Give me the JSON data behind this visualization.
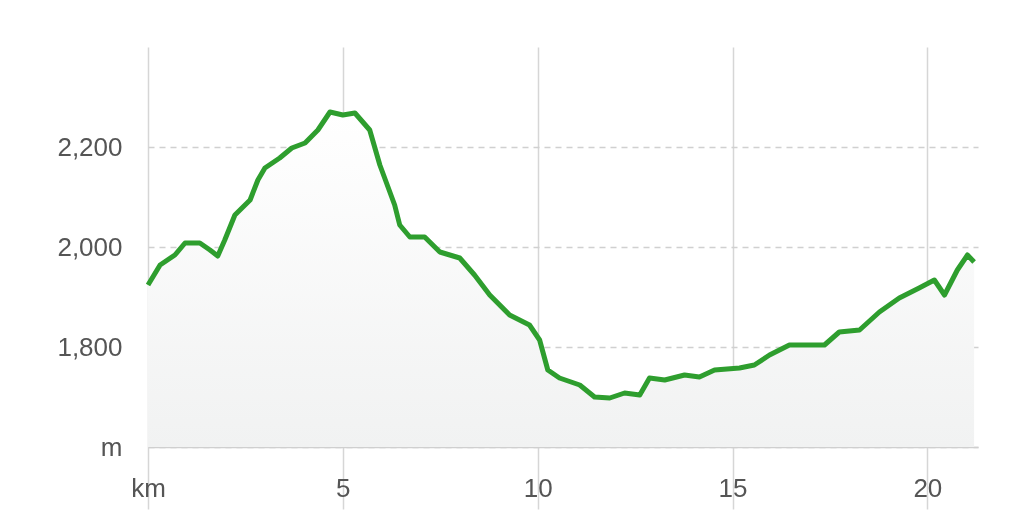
{
  "chart_data": {
    "type": "area",
    "x": [
      0,
      0.31,
      0.69,
      0.95,
      1.33,
      1.59,
      1.79,
      1.97,
      2.23,
      2.62,
      2.82,
      3.0,
      3.38,
      3.69,
      4.03,
      4.36,
      4.67,
      5.0,
      5.31,
      5.69,
      5.95,
      6.33,
      6.46,
      6.72,
      7.1,
      7.49,
      8.0,
      8.38,
      8.77,
      9.28,
      9.79,
      10.05,
      10.26,
      10.56,
      11.08,
      11.46,
      11.85,
      12.23,
      12.62,
      12.87,
      13.26,
      13.77,
      14.15,
      14.54,
      15.18,
      15.56,
      15.95,
      16.46,
      16.97,
      17.36,
      17.74,
      18.26,
      18.77,
      19.28,
      19.79,
      20.18,
      20.44,
      20.77,
      21.03,
      21.2
    ],
    "series": [
      {
        "color": "#2e9e2e",
        "values": [
          1924,
          1964,
          1984,
          2008,
          2008,
          1994,
          1982,
          2014,
          2064,
          2094,
          2134,
          2158,
          2178,
          2198,
          2208,
          2234,
          2270,
          2264,
          2268,
          2234,
          2164,
          2084,
          2044,
          2020,
          2020,
          1990,
          1978,
          1944,
          1904,
          1864,
          1844,
          1814,
          1754,
          1738,
          1724,
          1700,
          1698,
          1708,
          1704,
          1738,
          1734,
          1744,
          1740,
          1754,
          1758,
          1764,
          1784,
          1804,
          1804,
          1804,
          1830,
          1834,
          1870,
          1898,
          1918,
          1934,
          1904,
          1954,
          1984,
          1970
        ]
      }
    ],
    "xlim": [
      0,
      21.3
    ],
    "xticks": [
      {
        "value": 0,
        "label": "km"
      },
      5,
      10,
      15,
      20
    ],
    "ylim": [
      1600,
      2400
    ],
    "yticks": [
      {
        "value": 1600,
        "label": "m"
      },
      {
        "value": 1800,
        "label": "1,800"
      },
      {
        "value": 2000,
        "label": "2,000"
      },
      {
        "value": 2200,
        "label": "2,200"
      }
    ],
    "grid": true
  }
}
